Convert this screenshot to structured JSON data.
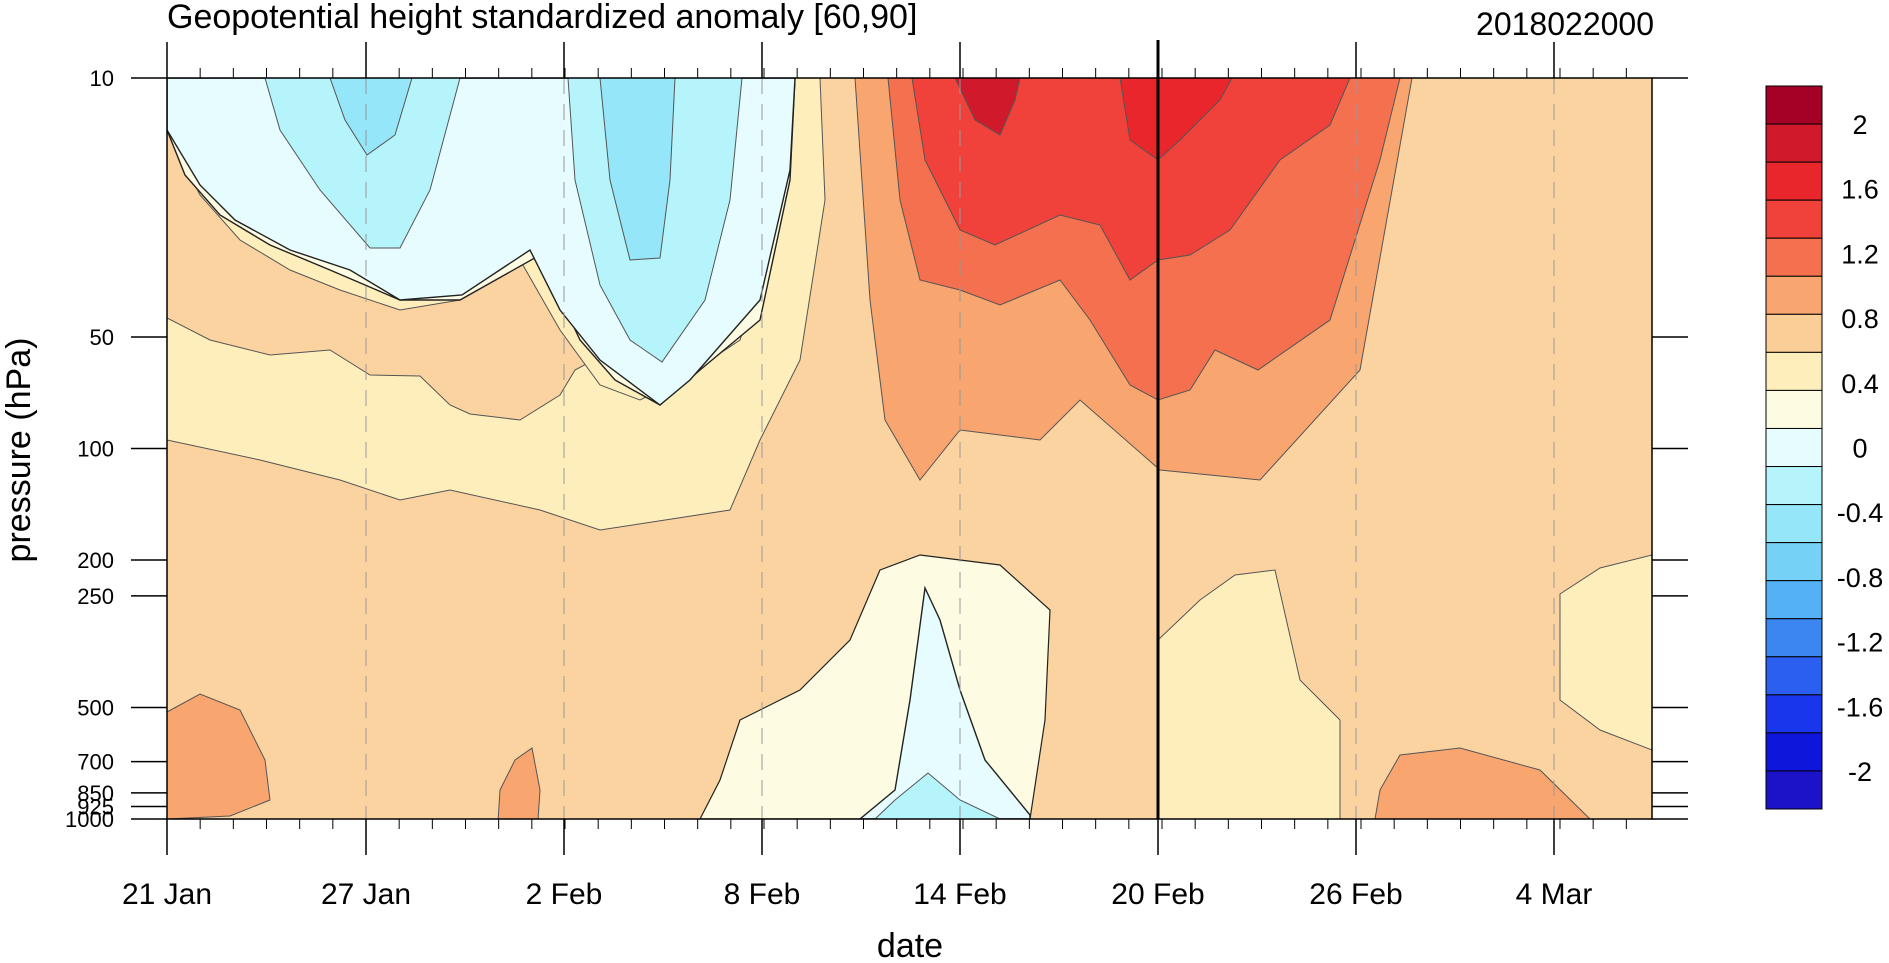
{
  "chart_data": {
    "type": "contour",
    "title": "Geopotential height standardized anomaly [60,90]",
    "date_label": "2018022000",
    "xlabel": "date",
    "ylabel": "pressure (hPa)",
    "x_ticks": [
      "21 Jan",
      "27 Jan",
      "2 Feb",
      "8 Feb",
      "14 Feb",
      "20 Feb",
      "26 Feb",
      "4 Mar"
    ],
    "y_ticks": [
      "10",
      "50",
      "100",
      "200",
      "250",
      "500",
      "700",
      "850",
      "925",
      "1000"
    ],
    "y_scale": "log",
    "colorbar_labels": [
      "2",
      "1.6",
      "1.2",
      "0.8",
      "0.4",
      "0",
      "-0.4",
      "-0.8",
      "-1.2",
      "-1.6",
      "-2"
    ],
    "colorbar_colors": [
      "#a50026",
      "#d01a2c",
      "#e8262c",
      "#f0413a",
      "#f5704f",
      "#f9a56f",
      "#fbce97",
      "#fdeebb",
      "#fefbe3",
      "#e6fcfe",
      "#b6f4fb",
      "#94e6f8",
      "#76d1f6",
      "#55b1f5",
      "#3b86f1",
      "#2a5ff0",
      "#1a36ec",
      "#0e16dc",
      "#1c13c8"
    ],
    "highlight_date": "20 Feb",
    "grid": false
  }
}
